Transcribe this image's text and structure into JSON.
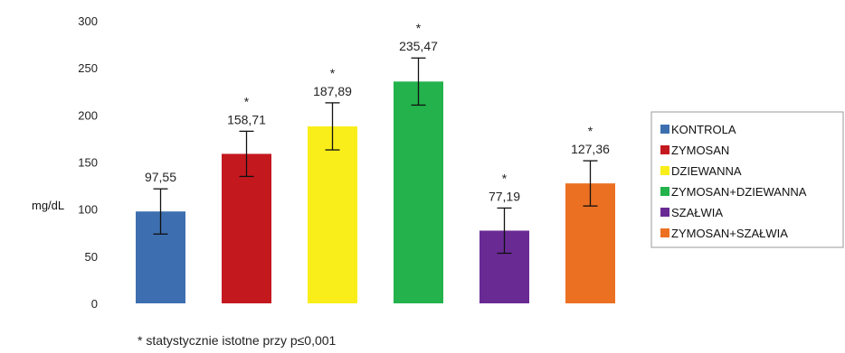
{
  "chart_data": {
    "type": "bar",
    "categories": [
      "KONTROLA",
      "ZYMOSAN",
      "DZIEWANNA",
      "ZYMOSAN+DZIEWANNA",
      "SZAŁWIA",
      "ZYMOSAN+SZAŁWIA"
    ],
    "values": [
      97.55,
      158.71,
      187.89,
      235.47,
      77.19,
      127.36
    ],
    "value_labels": [
      "97,55",
      "158,71",
      "187,89",
      "235,47",
      "77,19",
      "127,36"
    ],
    "error": [
      24,
      24,
      25,
      25,
      24,
      24
    ],
    "significant": [
      false,
      true,
      true,
      true,
      true,
      true
    ],
    "significance_marker": "*",
    "colors": [
      "#3d6fb0",
      "#c4181f",
      "#f9ee1a",
      "#23b24b",
      "#6a2a94",
      "#ec7022"
    ],
    "ylabel": "mg/dL",
    "ylim": [
      0,
      300
    ],
    "yticks": [
      0,
      50,
      100,
      150,
      200,
      250,
      300
    ],
    "grid": false,
    "legend": {
      "position": "right",
      "entries": [
        "KONTROLA",
        "ZYMOSAN",
        "DZIEWANNA",
        "ZYMOSAN+DZIEWANNA",
        "SZAŁWIA",
        "ZYMOSAN+SZAŁWIA"
      ]
    },
    "footnote": "* statystycznie istotne przy p≤0,001"
  }
}
